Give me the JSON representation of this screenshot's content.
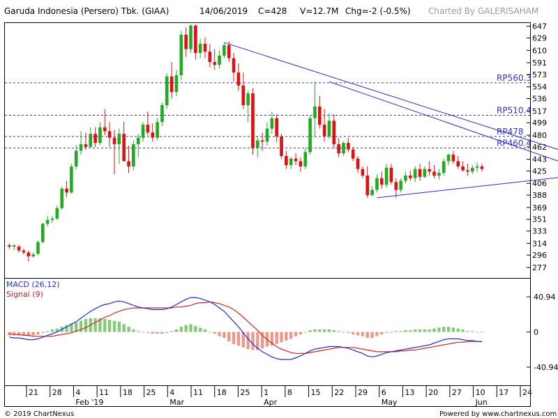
{
  "header": {
    "title": "Garuda Indonesia (Persero) Tbk. (GIAA)",
    "date": "14/06/2019",
    "close": "C=428",
    "volume": "V=12.7M",
    "change": "Chg=-2 (-0.5%)",
    "credit": "Charted By GALERISAHAM"
  },
  "footer": {
    "copyright": "© 2019 ChartNexus",
    "powered": "Powered by www.chartnexus.com"
  },
  "chart_data": [
    {
      "type": "candlestick",
      "title": "Garuda Indonesia (Persero) Tbk. (GIAA)",
      "ylim": [
        262,
        652
      ],
      "y_ticks": [
        "647",
        "629",
        "610",
        "591",
        "573",
        "554",
        "536",
        "517",
        "499",
        "480",
        "462",
        "443",
        "425",
        "406",
        "388",
        "369",
        "351",
        "333",
        "314",
        "296",
        "277"
      ],
      "x_ticks": [
        "21",
        "28",
        "4",
        "11",
        "18",
        "25",
        "4",
        "11",
        "18",
        "25",
        "1",
        "8",
        "15",
        "22",
        "29",
        "6",
        "13",
        "20",
        "27",
        "10",
        "17",
        "24"
      ],
      "x_month_labels": [
        {
          "label": "Feb '19",
          "tick_index": 2
        },
        {
          "label": "Mar",
          "tick_index": 6
        },
        {
          "label": "Apr",
          "tick_index": 10
        },
        {
          "label": "May",
          "tick_index": 15
        },
        {
          "label": "Jun",
          "tick_index": 19
        }
      ],
      "resistance_levels": [
        {
          "label": "RP560.3",
          "value": 560.3
        },
        {
          "label": "RP510.4",
          "value": 510.4
        },
        {
          "label": "RP478",
          "value": 478
        },
        {
          "label": "RP460.4",
          "value": 460.4
        }
      ],
      "trendlines": [
        {
          "from": {
            "bar": 45,
            "price": 622
          },
          "to": {
            "bar": 129,
            "price": 425
          }
        },
        {
          "from": {
            "bar": 67,
            "price": 562
          },
          "to": {
            "bar": 121,
            "price": 425
          }
        },
        {
          "from": {
            "bar": 77,
            "price": 384
          },
          "to": {
            "bar": 115,
            "price": 415
          }
        }
      ],
      "candles": [
        {
          "o": 311,
          "h": 314,
          "l": 306,
          "c": 309
        },
        {
          "o": 309,
          "h": 313,
          "l": 304,
          "c": 311
        },
        {
          "o": 309,
          "h": 312,
          "l": 300,
          "c": 303
        },
        {
          "o": 303,
          "h": 306,
          "l": 297,
          "c": 300
        },
        {
          "o": 300,
          "h": 303,
          "l": 286,
          "c": 294
        },
        {
          "o": 294,
          "h": 300,
          "l": 292,
          "c": 297
        },
        {
          "o": 298,
          "h": 318,
          "l": 296,
          "c": 316
        },
        {
          "o": 316,
          "h": 346,
          "l": 314,
          "c": 344
        },
        {
          "o": 344,
          "h": 356,
          "l": 340,
          "c": 350
        },
        {
          "o": 350,
          "h": 356,
          "l": 345,
          "c": 352
        },
        {
          "o": 352,
          "h": 372,
          "l": 350,
          "c": 368
        },
        {
          "o": 368,
          "h": 401,
          "l": 366,
          "c": 398
        },
        {
          "o": 398,
          "h": 410,
          "l": 385,
          "c": 392
        },
        {
          "o": 392,
          "h": 436,
          "l": 390,
          "c": 432
        },
        {
          "o": 432,
          "h": 465,
          "l": 428,
          "c": 456
        },
        {
          "o": 456,
          "h": 486,
          "l": 450,
          "c": 466
        },
        {
          "o": 466,
          "h": 484,
          "l": 458,
          "c": 462
        },
        {
          "o": 462,
          "h": 492,
          "l": 460,
          "c": 482
        },
        {
          "o": 482,
          "h": 492,
          "l": 462,
          "c": 468
        },
        {
          "o": 468,
          "h": 500,
          "l": 465,
          "c": 492
        },
        {
          "o": 492,
          "h": 520,
          "l": 480,
          "c": 486
        },
        {
          "o": 486,
          "h": 500,
          "l": 462,
          "c": 476
        },
        {
          "o": 476,
          "h": 488,
          "l": 420,
          "c": 466
        },
        {
          "o": 466,
          "h": 490,
          "l": 436,
          "c": 482
        },
        {
          "o": 482,
          "h": 500,
          "l": 440,
          "c": 440
        },
        {
          "o": 440,
          "h": 464,
          "l": 422,
          "c": 432
        },
        {
          "o": 432,
          "h": 472,
          "l": 426,
          "c": 466
        },
        {
          "o": 466,
          "h": 482,
          "l": 446,
          "c": 476
        },
        {
          "o": 476,
          "h": 500,
          "l": 470,
          "c": 496
        },
        {
          "o": 496,
          "h": 516,
          "l": 480,
          "c": 484
        },
        {
          "o": 484,
          "h": 498,
          "l": 470,
          "c": 476
        },
        {
          "o": 476,
          "h": 506,
          "l": 472,
          "c": 500
        },
        {
          "o": 500,
          "h": 530,
          "l": 494,
          "c": 526
        },
        {
          "o": 526,
          "h": 575,
          "l": 520,
          "c": 570
        },
        {
          "o": 570,
          "h": 592,
          "l": 536,
          "c": 546
        },
        {
          "o": 546,
          "h": 580,
          "l": 540,
          "c": 572
        },
        {
          "o": 572,
          "h": 640,
          "l": 564,
          "c": 634
        },
        {
          "o": 634,
          "h": 645,
          "l": 600,
          "c": 612
        },
        {
          "o": 612,
          "h": 650,
          "l": 606,
          "c": 648
        },
        {
          "o": 648,
          "h": 650,
          "l": 596,
          "c": 606
        },
        {
          "o": 606,
          "h": 628,
          "l": 598,
          "c": 620
        },
        {
          "o": 620,
          "h": 630,
          "l": 598,
          "c": 608
        },
        {
          "o": 608,
          "h": 620,
          "l": 584,
          "c": 592
        },
        {
          "o": 592,
          "h": 612,
          "l": 580,
          "c": 588
        },
        {
          "o": 588,
          "h": 610,
          "l": 582,
          "c": 602
        },
        {
          "o": 602,
          "h": 622,
          "l": 598,
          "c": 618
        },
        {
          "o": 618,
          "h": 624,
          "l": 592,
          "c": 598
        },
        {
          "o": 598,
          "h": 606,
          "l": 562,
          "c": 576
        },
        {
          "o": 576,
          "h": 590,
          "l": 548,
          "c": 556
        },
        {
          "o": 556,
          "h": 576,
          "l": 520,
          "c": 526
        },
        {
          "o": 526,
          "h": 548,
          "l": 500,
          "c": 544
        },
        {
          "o": 544,
          "h": 552,
          "l": 450,
          "c": 460
        },
        {
          "o": 460,
          "h": 478,
          "l": 446,
          "c": 472
        },
        {
          "o": 472,
          "h": 484,
          "l": 456,
          "c": 470
        },
        {
          "o": 470,
          "h": 500,
          "l": 464,
          "c": 490
        },
        {
          "o": 490,
          "h": 516,
          "l": 482,
          "c": 506
        },
        {
          "o": 506,
          "h": 512,
          "l": 470,
          "c": 478
        },
        {
          "o": 478,
          "h": 482,
          "l": 444,
          "c": 448
        },
        {
          "o": 448,
          "h": 456,
          "l": 428,
          "c": 434
        },
        {
          "o": 434,
          "h": 446,
          "l": 428,
          "c": 444
        },
        {
          "o": 444,
          "h": 452,
          "l": 434,
          "c": 440
        },
        {
          "o": 440,
          "h": 446,
          "l": 424,
          "c": 432
        },
        {
          "o": 432,
          "h": 460,
          "l": 428,
          "c": 454
        },
        {
          "o": 454,
          "h": 510,
          "l": 450,
          "c": 506
        },
        {
          "o": 506,
          "h": 562,
          "l": 476,
          "c": 524
        },
        {
          "o": 524,
          "h": 540,
          "l": 490,
          "c": 496
        },
        {
          "o": 496,
          "h": 520,
          "l": 470,
          "c": 478
        },
        {
          "o": 478,
          "h": 514,
          "l": 474,
          "c": 502
        },
        {
          "o": 502,
          "h": 512,
          "l": 460,
          "c": 466
        },
        {
          "o": 466,
          "h": 476,
          "l": 446,
          "c": 452
        },
        {
          "o": 452,
          "h": 470,
          "l": 448,
          "c": 468
        },
        {
          "o": 468,
          "h": 476,
          "l": 454,
          "c": 458
        },
        {
          "o": 458,
          "h": 462,
          "l": 440,
          "c": 444
        },
        {
          "o": 444,
          "h": 448,
          "l": 422,
          "c": 428
        },
        {
          "o": 428,
          "h": 432,
          "l": 414,
          "c": 418
        },
        {
          "o": 418,
          "h": 432,
          "l": 384,
          "c": 388
        },
        {
          "o": 388,
          "h": 402,
          "l": 386,
          "c": 396
        },
        {
          "o": 396,
          "h": 420,
          "l": 392,
          "c": 414
        },
        {
          "o": 414,
          "h": 424,
          "l": 398,
          "c": 404
        },
        {
          "o": 404,
          "h": 436,
          "l": 400,
          "c": 430
        },
        {
          "o": 430,
          "h": 436,
          "l": 404,
          "c": 408
        },
        {
          "o": 408,
          "h": 414,
          "l": 384,
          "c": 396
        },
        {
          "o": 396,
          "h": 414,
          "l": 392,
          "c": 410
        },
        {
          "o": 410,
          "h": 424,
          "l": 406,
          "c": 418
        },
        {
          "o": 418,
          "h": 426,
          "l": 410,
          "c": 414
        },
        {
          "o": 414,
          "h": 432,
          "l": 408,
          "c": 428
        },
        {
          "o": 428,
          "h": 436,
          "l": 410,
          "c": 416
        },
        {
          "o": 416,
          "h": 432,
          "l": 414,
          "c": 428
        },
        {
          "o": 428,
          "h": 440,
          "l": 418,
          "c": 424
        },
        {
          "o": 424,
          "h": 434,
          "l": 414,
          "c": 418
        },
        {
          "o": 418,
          "h": 428,
          "l": 412,
          "c": 422
        },
        {
          "o": 422,
          "h": 444,
          "l": 418,
          "c": 440
        },
        {
          "o": 440,
          "h": 452,
          "l": 434,
          "c": 450
        },
        {
          "o": 450,
          "h": 456,
          "l": 436,
          "c": 440
        },
        {
          "o": 440,
          "h": 448,
          "l": 428,
          "c": 432
        },
        {
          "o": 432,
          "h": 440,
          "l": 424,
          "c": 426
        },
        {
          "o": 426,
          "h": 436,
          "l": 418,
          "c": 424
        },
        {
          "o": 424,
          "h": 434,
          "l": 420,
          "c": 430
        },
        {
          "o": 430,
          "h": 438,
          "l": 424,
          "c": 432
        },
        {
          "o": 432,
          "h": 436,
          "l": 424,
          "c": 428
        }
      ]
    },
    {
      "type": "macd",
      "title": "MACD (26,12)",
      "series": [
        {
          "name": "MACD (26,12)",
          "color": "#1a2fd6"
        },
        {
          "name": "Signal (9)",
          "color": "#e02020"
        }
      ],
      "ylim": [
        -62,
        62
      ],
      "y_ticks": [
        "40.94",
        "0",
        "-40.94"
      ],
      "macd": [
        -6,
        -7,
        -7,
        -8,
        -9,
        -9,
        -8,
        -6,
        -4,
        -2,
        0,
        3,
        6,
        9,
        12,
        16,
        20,
        24,
        27,
        30,
        32,
        33,
        35,
        36,
        35,
        33,
        31,
        29,
        28,
        27,
        26,
        26,
        26,
        27,
        29,
        32,
        35,
        38,
        40,
        40,
        39,
        37,
        35,
        32,
        28,
        24,
        18,
        12,
        6,
        -1,
        -8,
        -14,
        -19,
        -23,
        -26,
        -29,
        -31,
        -32,
        -32,
        -32,
        -30,
        -28,
        -25,
        -22,
        -20,
        -19,
        -18,
        -17,
        -17,
        -17,
        -18,
        -19,
        -21,
        -23,
        -25,
        -28,
        -29,
        -28,
        -26,
        -24,
        -23,
        -22,
        -21,
        -20,
        -19,
        -18,
        -17,
        -16,
        -15,
        -13,
        -11,
        -9,
        -8,
        -8,
        -8,
        -9,
        -10,
        -10,
        -11,
        -11
      ],
      "signal": [
        -2,
        -3,
        -3,
        -4,
        -4,
        -5,
        -5,
        -5,
        -5,
        -5,
        -4,
        -3,
        -2,
        -1,
        1,
        3,
        5,
        8,
        11,
        14,
        17,
        19,
        22,
        24,
        26,
        27,
        28,
        28,
        28,
        28,
        28,
        28,
        28,
        28,
        28,
        29,
        29,
        30,
        31,
        33,
        34,
        34,
        35,
        34,
        33,
        31,
        29,
        26,
        22,
        17,
        12,
        7,
        2,
        -4,
        -9,
        -13,
        -17,
        -20,
        -22,
        -24,
        -25,
        -25,
        -25,
        -24,
        -23,
        -22,
        -21,
        -20,
        -19,
        -18,
        -18,
        -18,
        -18,
        -19,
        -20,
        -21,
        -22,
        -23,
        -23,
        -23,
        -23,
        -23,
        -22,
        -22,
        -21,
        -21,
        -20,
        -19,
        -18,
        -17,
        -16,
        -15,
        -14,
        -13,
        -12,
        -12,
        -11,
        -11,
        -11,
        -11
      ]
    }
  ]
}
